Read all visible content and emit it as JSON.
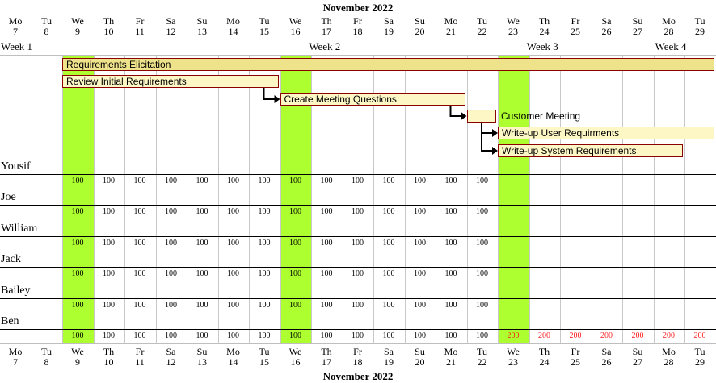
{
  "month_label": "November 2022",
  "days": [
    {
      "dow": "Mo",
      "num": "7"
    },
    {
      "dow": "Tu",
      "num": "8"
    },
    {
      "dow": "We",
      "num": "9"
    },
    {
      "dow": "Th",
      "num": "10"
    },
    {
      "dow": "Fr",
      "num": "11"
    },
    {
      "dow": "Sa",
      "num": "12"
    },
    {
      "dow": "Su",
      "num": "13"
    },
    {
      "dow": "Mo",
      "num": "14"
    },
    {
      "dow": "Tu",
      "num": "15"
    },
    {
      "dow": "We",
      "num": "16"
    },
    {
      "dow": "Th",
      "num": "17"
    },
    {
      "dow": "Fr",
      "num": "18"
    },
    {
      "dow": "Sa",
      "num": "19"
    },
    {
      "dow": "Su",
      "num": "20"
    },
    {
      "dow": "Mo",
      "num": "21"
    },
    {
      "dow": "Tu",
      "num": "22"
    },
    {
      "dow": "We",
      "num": "23"
    },
    {
      "dow": "Th",
      "num": "24"
    },
    {
      "dow": "Fr",
      "num": "25"
    },
    {
      "dow": "Sa",
      "num": "26"
    },
    {
      "dow": "Su",
      "num": "27"
    },
    {
      "dow": "Mo",
      "num": "28"
    },
    {
      "dow": "Tu",
      "num": "29"
    }
  ],
  "weeks": [
    {
      "label": "Week 1",
      "start_day_index": 0
    },
    {
      "label": "Week 2",
      "start_day_index": 7
    },
    {
      "label": "Week 3",
      "start_day_index": 14
    },
    {
      "label": "Week 4",
      "start_day_index": 21
    }
  ],
  "highlighted_day_indices": [
    2,
    9,
    16
  ],
  "colors": {
    "highlight": "#adff2f",
    "task_fill": "#fdf7c6",
    "summary_fill": "#eee28b",
    "task_border": "#8b0000",
    "overallocated_text": "#ff1a1a"
  },
  "tasks": [
    {
      "name": "Requirements Elicitation",
      "start_day_index": 2,
      "duration_days": 21,
      "summary": true,
      "label_outside": false
    },
    {
      "name": "Review Initial Requirements",
      "start_day_index": 2,
      "duration_days": 7,
      "summary": false,
      "label_outside": false
    },
    {
      "name": "Create Meeting Questions",
      "start_day_index": 9,
      "duration_days": 6,
      "summary": false,
      "label_outside": false
    },
    {
      "name": "Customer Meeting",
      "start_day_index": 15,
      "duration_days": 1,
      "summary": false,
      "label_outside": true
    },
    {
      "name": "Write-up User Requirments",
      "start_day_index": 16,
      "duration_days": 7,
      "summary": false,
      "label_outside": false
    },
    {
      "name": "Write-up System Requirements",
      "start_day_index": 16,
      "duration_days": 6,
      "summary": false,
      "label_outside": false
    }
  ],
  "dependencies": [
    {
      "from": 1,
      "to": 2
    },
    {
      "from": 2,
      "to": 3
    },
    {
      "from": 3,
      "to": 4
    },
    {
      "from": 3,
      "to": 5
    }
  ],
  "resources": [
    {
      "name": "Yousif",
      "start_day_index": 2,
      "values": [
        "100",
        "100",
        "100",
        "100",
        "100",
        "100",
        "100",
        "100",
        "100",
        "100",
        "100",
        "100",
        "100",
        "100"
      ]
    },
    {
      "name": "Joe",
      "start_day_index": 2,
      "values": [
        "100",
        "100",
        "100",
        "100",
        "100",
        "100",
        "100",
        "100",
        "100",
        "100",
        "100",
        "100",
        "100",
        "100"
      ]
    },
    {
      "name": "William",
      "start_day_index": 2,
      "values": [
        "100",
        "100",
        "100",
        "100",
        "100",
        "100",
        "100",
        "100",
        "100",
        "100",
        "100",
        "100",
        "100",
        "100"
      ]
    },
    {
      "name": "Jack",
      "start_day_index": 2,
      "values": [
        "100",
        "100",
        "100",
        "100",
        "100",
        "100",
        "100",
        "100",
        "100",
        "100",
        "100",
        "100",
        "100",
        "100"
      ]
    },
    {
      "name": "Bailey",
      "start_day_index": 2,
      "values": [
        "100",
        "100",
        "100",
        "100",
        "100",
        "100",
        "100",
        "100",
        "100",
        "100",
        "100",
        "100",
        "100",
        "100"
      ]
    },
    {
      "name": "Ben",
      "start_day_index": 2,
      "values": [
        "100",
        "100",
        "100",
        "100",
        "100",
        "100",
        "100",
        "100",
        "100",
        "100",
        "100",
        "100",
        "100",
        "100",
        "200",
        "200",
        "200",
        "200",
        "200",
        "200",
        "200"
      ]
    }
  ]
}
